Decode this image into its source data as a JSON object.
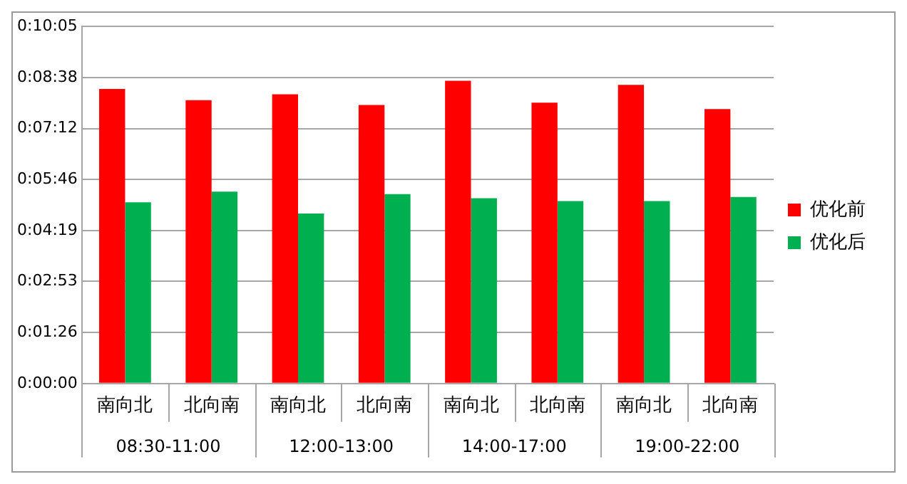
{
  "chart_data": {
    "type": "bar",
    "categories": [
      "南向北",
      "北向南",
      "南向北",
      "北向南",
      "南向北",
      "北向南",
      "南向北",
      "北向南"
    ],
    "series": [
      {
        "name": "优化前",
        "color": "#ff0000",
        "values": [
          499,
          480,
          490,
          472,
          513,
          476,
          506,
          465
        ]
      },
      {
        "name": "优化后",
        "color": "#00b050",
        "values": [
          307,
          325,
          288,
          321,
          314,
          309,
          309,
          316
        ]
      }
    ],
    "annotations": [
      "08:30-11:00",
      "12:00-13:00",
      "14:00-17:00",
      "19:00-22:00"
    ],
    "ylim": [
      0,
      605
    ],
    "yticks": [
      {
        "value": 0,
        "label": "0:00:00"
      },
      {
        "value": 86,
        "label": "0:01:26"
      },
      {
        "value": 173,
        "label": "0:02:53"
      },
      {
        "value": 259,
        "label": "0:04:19"
      },
      {
        "value": 346,
        "label": "0:05:46"
      },
      {
        "value": 432,
        "label": "0:07:12"
      },
      {
        "value": 518,
        "label": "0:08:38"
      },
      {
        "value": 605,
        "label": "0:10:05"
      }
    ],
    "grid": "y",
    "legend": "right"
  }
}
